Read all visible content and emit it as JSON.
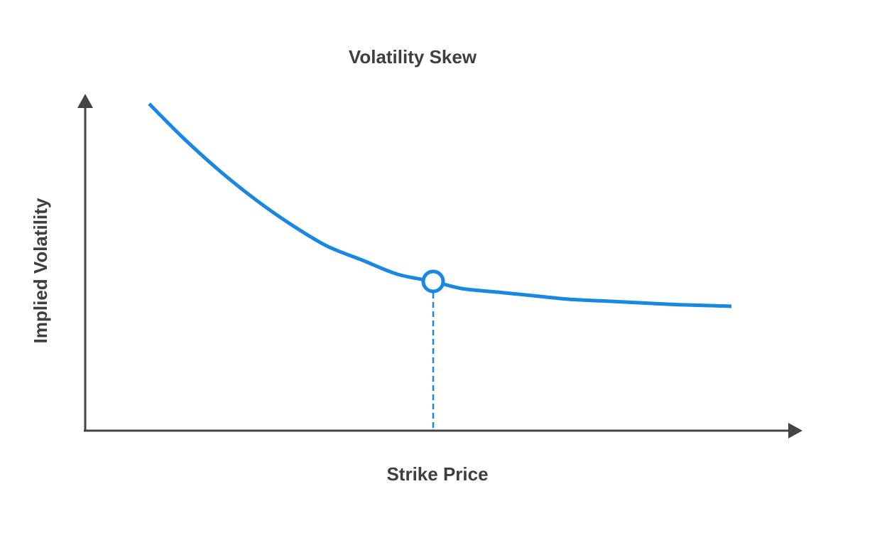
{
  "chart_data": {
    "type": "line",
    "title": "Volatility Skew",
    "xlabel": "Strike Price",
    "ylabel": "Implied Volatility",
    "x_ticks": [],
    "y_ticks": [],
    "grid": false,
    "legend": "none",
    "xlim": [
      0,
      100
    ],
    "ylim": [
      0,
      100
    ],
    "series": [
      {
        "x": [
          9,
          14,
          19,
          24,
          29,
          34,
          39,
          44,
          49,
          53,
          58,
          63,
          68,
          73,
          78,
          83,
          88,
          91
        ],
        "y": [
          92,
          82,
          73,
          65,
          58,
          52,
          48,
          44,
          42,
          40,
          39,
          38,
          37,
          36.5,
          36,
          35.5,
          35.2,
          35
        ],
        "color": "#1a87e0"
      }
    ],
    "highlight": {
      "x": 49,
      "y": 42,
      "style": "open-circle-with-dashed-drop-line",
      "color": "#1a87e0"
    },
    "axis_color": "#444444"
  }
}
